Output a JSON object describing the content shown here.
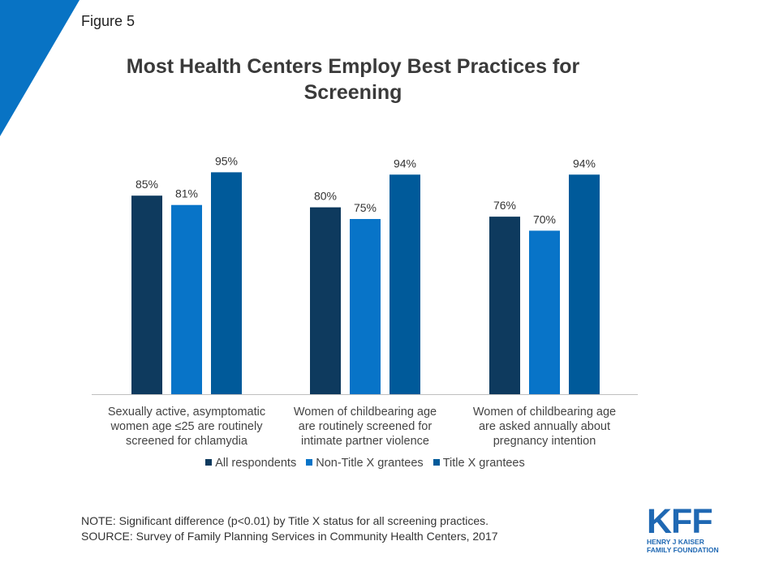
{
  "figure_label": "Figure 5",
  "title_line1": "Most Health Centers Employ Best Practices for",
  "title_line2": "Screening",
  "colors": {
    "all": "#0e3a5e",
    "non_title_x": "#0874c8",
    "title_x": "#005a9a",
    "corner": "#0873c4"
  },
  "chart_data": {
    "type": "bar",
    "categories": [
      [
        "Sexually active, asymptomatic",
        "women age ≤25 are routinely",
        "screened for chlamydia"
      ],
      [
        "Women of childbearing age",
        "are routinely screened for",
        "intimate partner violence"
      ],
      [
        "Women of childbearing age",
        "are asked annually about",
        "pregnancy intention"
      ]
    ],
    "series": [
      {
        "name": "All respondents",
        "values": [
          85,
          80,
          76
        ],
        "labels": [
          "85%",
          "80%",
          "76%"
        ]
      },
      {
        "name": "Non-Title X grantees",
        "values": [
          81,
          75,
          70
        ],
        "labels": [
          "81%",
          "75%",
          "70%"
        ]
      },
      {
        "name": "Title X grantees",
        "values": [
          95,
          94,
          94
        ],
        "labels": [
          "95%",
          "94%",
          "94%"
        ]
      }
    ],
    "ylim": [
      0,
      100
    ],
    "grid": false,
    "legend": "bottom"
  },
  "note": "NOTE: Significant difference (p<0.01) by Title X status for all screening practices.",
  "source": "SOURCE: Survey of Family Planning Services in Community Health Centers, 2017",
  "logo": {
    "mark": "KFF",
    "line1": "HENRY J KAISER",
    "line2": "FAMILY FOUNDATION"
  }
}
